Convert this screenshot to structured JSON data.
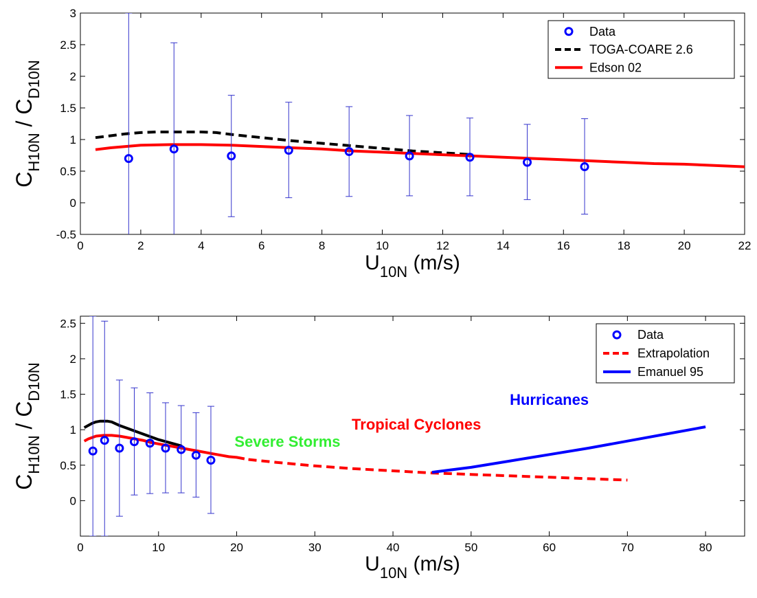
{
  "chart_data": [
    {
      "type": "line",
      "xlabel": {
        "main": "U",
        "sub": "10N",
        "tail": " (m/s)"
      },
      "ylabel": {
        "c1": "C",
        "s1": "H10N",
        "mid": " / C",
        "s2": "D10N"
      },
      "xlim": [
        0,
        22
      ],
      "ylim": [
        -0.5,
        3
      ],
      "xticks": [
        0,
        2,
        4,
        6,
        8,
        10,
        12,
        14,
        16,
        18,
        20,
        22
      ],
      "yticks": [
        -0.5,
        0,
        0.5,
        1,
        1.5,
        2,
        2.5,
        3
      ],
      "grid": false,
      "legend_position": "top-right",
      "legend": [
        "Data",
        "TOGA-COARE 2.6",
        "Edson 02"
      ],
      "colors": {
        "data": "#0000ff",
        "errorbar": "#3333cc",
        "toga": "#000000",
        "edson": "#ff0000"
      },
      "series": [
        {
          "name": "Data",
          "style": "markers-errorbars",
          "x": [
            1.6,
            3.1,
            5.0,
            6.9,
            8.9,
            10.9,
            12.9,
            14.8,
            16.7
          ],
          "y": [
            0.7,
            0.85,
            0.74,
            0.83,
            0.81,
            0.74,
            0.72,
            0.64,
            0.57
          ],
          "err_low": [
            -1.75,
            -0.55,
            -0.22,
            0.08,
            0.1,
            0.11,
            0.11,
            0.05,
            -0.18
          ],
          "err_high": [
            3.0,
            2.53,
            1.7,
            1.59,
            1.52,
            1.38,
            1.34,
            1.24,
            1.33
          ]
        },
        {
          "name": "TOGA-COARE 2.6",
          "style": "dashed",
          "x": [
            0.5,
            1,
            1.5,
            2,
            2.5,
            3,
            3.5,
            4,
            4.5,
            5,
            6,
            7,
            8,
            9,
            10,
            11,
            12,
            13
          ],
          "y": [
            1.03,
            1.06,
            1.09,
            1.11,
            1.12,
            1.12,
            1.12,
            1.12,
            1.11,
            1.08,
            1.03,
            0.98,
            0.94,
            0.9,
            0.86,
            0.82,
            0.79,
            0.76
          ]
        },
        {
          "name": "Edson 02",
          "style": "solid",
          "x": [
            0.5,
            1,
            1.5,
            2,
            3,
            4,
            5,
            6,
            7,
            8,
            9,
            10,
            11,
            12,
            13,
            14,
            15,
            16,
            17,
            18,
            19,
            20,
            21,
            22
          ],
          "y": [
            0.84,
            0.87,
            0.89,
            0.91,
            0.92,
            0.92,
            0.91,
            0.89,
            0.87,
            0.85,
            0.82,
            0.8,
            0.78,
            0.76,
            0.74,
            0.72,
            0.7,
            0.68,
            0.66,
            0.64,
            0.62,
            0.61,
            0.59,
            0.57
          ]
        }
      ]
    },
    {
      "type": "line",
      "xlabel": {
        "main": "U",
        "sub": "10N",
        "tail": " (m/s)"
      },
      "ylabel": {
        "c1": "C",
        "s1": "H10N",
        "mid": " / C",
        "s2": "D10N"
      },
      "xlim": [
        0,
        85
      ],
      "ylim": [
        -0.5,
        2.6
      ],
      "xticks": [
        0,
        10,
        20,
        30,
        40,
        50,
        60,
        70,
        80
      ],
      "yticks": [
        0,
        0.5,
        1,
        1.5,
        2,
        2.5
      ],
      "grid": false,
      "legend_position": "top-right",
      "legend": [
        "Data",
        "Extrapolation",
        "Emanuel 95"
      ],
      "colors": {
        "data": "#0000ff",
        "errorbar": "#3333cc",
        "black_curve": "#000000",
        "red_curve": "#ff0000",
        "extrapolation": "#ff0000",
        "emanuel": "#0000ff",
        "severe": "#33ee33",
        "tropical": "#ff0000",
        "hurricanes": "#0000ff"
      },
      "annotations": [
        {
          "text": "Severe Storms",
          "x": 26.5,
          "y": 0.76,
          "color": "#33ee33"
        },
        {
          "text": "Tropical Cyclones",
          "x": 43,
          "y": 1.0,
          "color": "#ff0000"
        },
        {
          "text": "Hurricanes",
          "x": 60,
          "y": 1.35,
          "color": "#0000ff"
        }
      ],
      "series": [
        {
          "name": "Data",
          "style": "markers-errorbars",
          "x": [
            1.6,
            3.1,
            5.0,
            6.9,
            8.9,
            10.9,
            12.9,
            14.8,
            16.7
          ],
          "y": [
            0.7,
            0.85,
            0.74,
            0.83,
            0.81,
            0.74,
            0.72,
            0.64,
            0.57
          ],
          "err_low": [
            -0.5,
            -0.5,
            -0.22,
            0.08,
            0.1,
            0.11,
            0.11,
            0.05,
            -0.18
          ],
          "err_high": [
            2.6,
            2.53,
            1.7,
            1.59,
            1.52,
            1.38,
            1.34,
            1.24,
            1.33
          ]
        },
        {
          "style": "solid",
          "x": [
            0.5,
            1,
            1.5,
            2,
            2.5,
            3,
            3.5,
            4,
            5,
            6,
            7,
            8,
            9,
            10,
            11,
            12,
            13
          ],
          "y": [
            1.03,
            1.06,
            1.09,
            1.11,
            1.12,
            1.12,
            1.12,
            1.11,
            1.06,
            1.02,
            0.98,
            0.94,
            0.9,
            0.86,
            0.83,
            0.8,
            0.77
          ]
        },
        {
          "style": "solid",
          "x": [
            0.5,
            1,
            2,
            3,
            4,
            5,
            6,
            7,
            8,
            9,
            10,
            11,
            12,
            13,
            14,
            15,
            16,
            17,
            18,
            19,
            20,
            21
          ],
          "y": [
            0.84,
            0.87,
            0.91,
            0.92,
            0.92,
            0.91,
            0.89,
            0.87,
            0.85,
            0.82,
            0.8,
            0.78,
            0.76,
            0.74,
            0.72,
            0.7,
            0.68,
            0.66,
            0.64,
            0.62,
            0.61,
            0.59
          ]
        },
        {
          "name": "Extrapolation",
          "style": "dashed",
          "x": [
            21.5,
            25,
            30,
            35,
            40,
            45,
            50,
            55,
            60,
            65,
            70
          ],
          "y": [
            0.58,
            0.54,
            0.49,
            0.45,
            0.42,
            0.39,
            0.37,
            0.35,
            0.33,
            0.31,
            0.29
          ]
        },
        {
          "name": "Emanuel 95",
          "style": "solid",
          "x": [
            45,
            50,
            55,
            60,
            65,
            70,
            75,
            80
          ],
          "y": [
            0.4,
            0.47,
            0.56,
            0.65,
            0.74,
            0.84,
            0.94,
            1.04
          ]
        }
      ]
    }
  ]
}
